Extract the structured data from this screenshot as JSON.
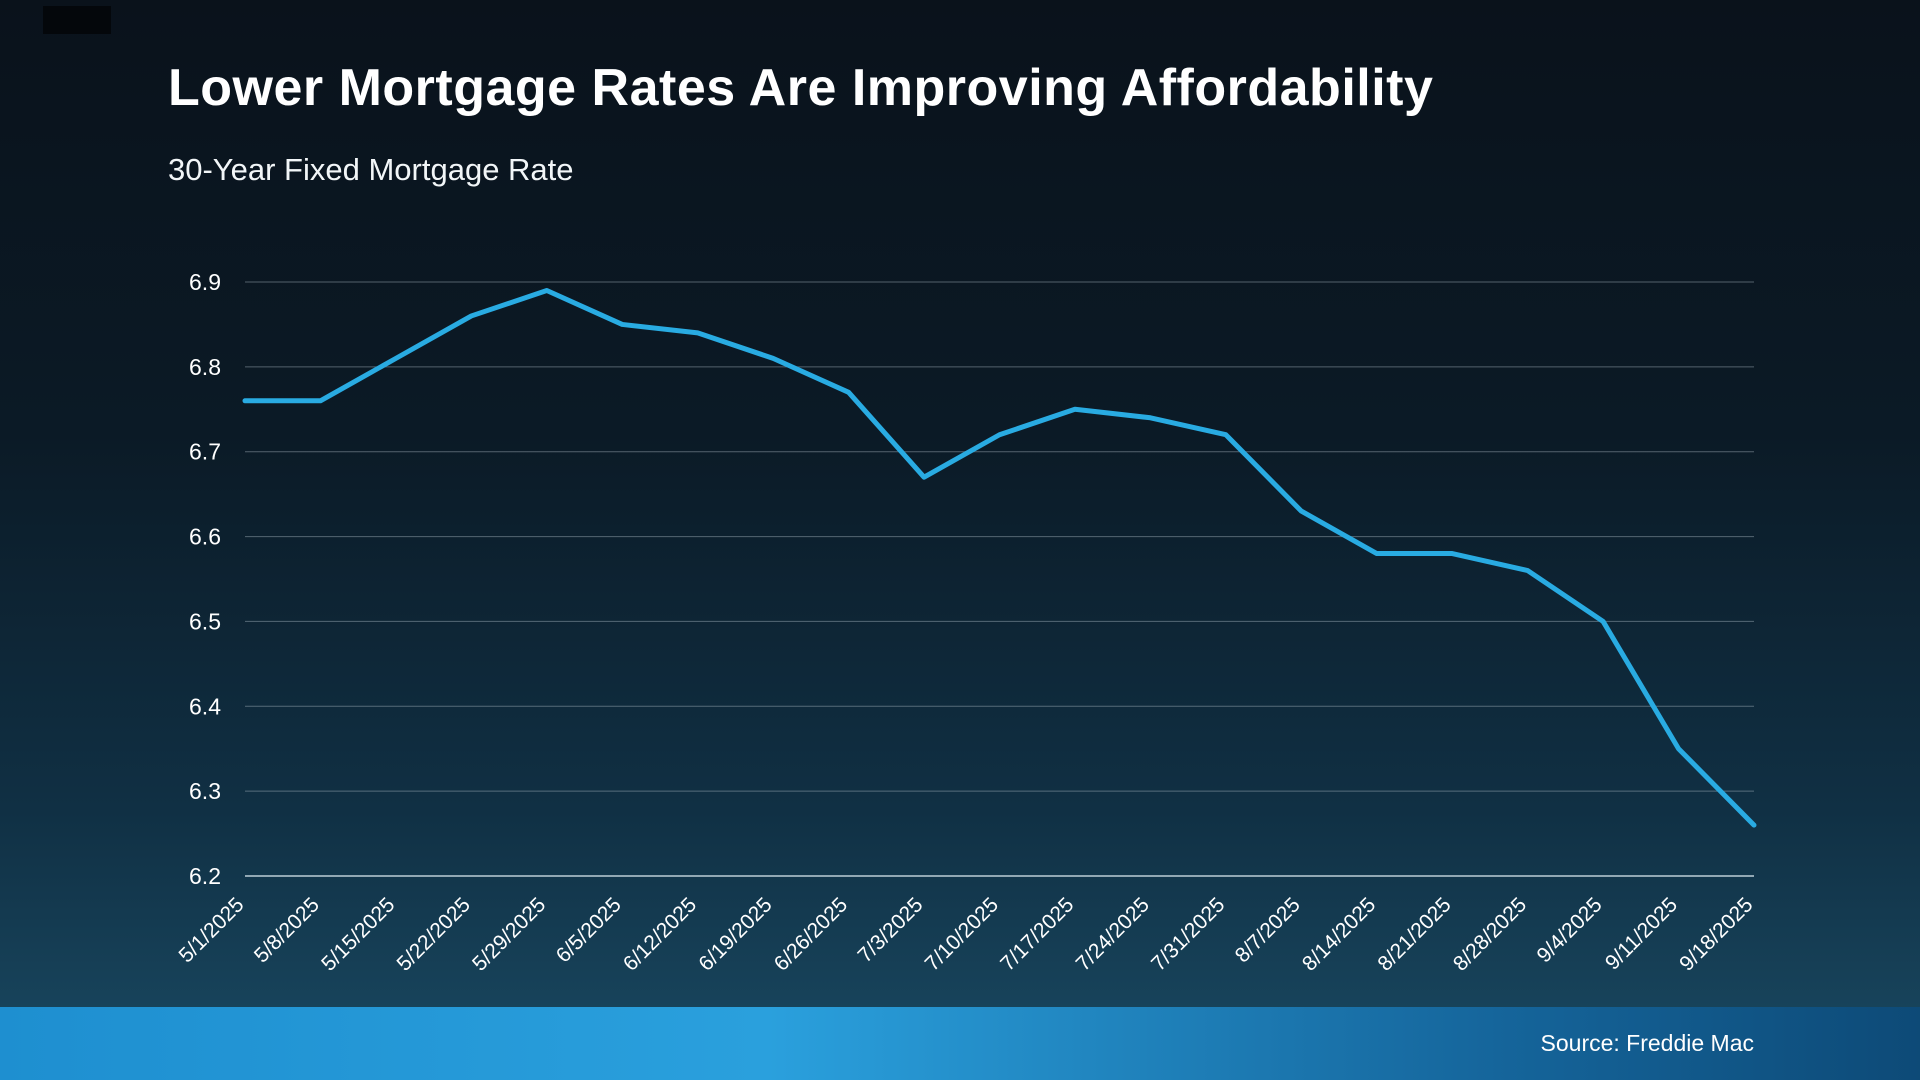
{
  "title": "Lower Mortgage Rates Are Improving Affordability",
  "subtitle": "30-Year Fixed Mortgage Rate",
  "footer": {
    "source": "Source: Freddie Mac"
  },
  "colors": {
    "line": "#29abe2",
    "grid": "#adbcc6",
    "background_top": "#0a121b",
    "background_bottom": "#1a4a63",
    "footer_bar_left": "#1e8fd0",
    "footer_bar_right": "#0d4a77"
  },
  "chart_data": {
    "type": "line",
    "title": "Lower Mortgage Rates Are Improving Affordability",
    "subtitle": "30-Year Fixed Mortgage Rate",
    "x": [
      "5/1/2025",
      "5/8/2025",
      "5/15/2025",
      "5/22/2025",
      "5/29/2025",
      "6/5/2025",
      "6/12/2025",
      "6/19/2025",
      "6/26/2025",
      "7/3/2025",
      "7/10/2025",
      "7/17/2025",
      "7/24/2025",
      "7/31/2025",
      "8/7/2025",
      "8/14/2025",
      "8/21/2025",
      "8/28/2025",
      "9/4/2025",
      "9/11/2025",
      "9/18/2025"
    ],
    "values": [
      6.76,
      6.76,
      6.81,
      6.86,
      6.89,
      6.85,
      6.84,
      6.81,
      6.77,
      6.67,
      6.72,
      6.75,
      6.74,
      6.72,
      6.63,
      6.58,
      6.58,
      6.56,
      6.5,
      6.35,
      6.26
    ],
    "ylim": [
      6.2,
      6.9
    ],
    "yticks": [
      6.2,
      6.3,
      6.4,
      6.5,
      6.6,
      6.7,
      6.8,
      6.9
    ],
    "grid": "horizontal",
    "legend": "none",
    "line_color": "#29abe2",
    "source": "Source: Freddie Mac"
  }
}
